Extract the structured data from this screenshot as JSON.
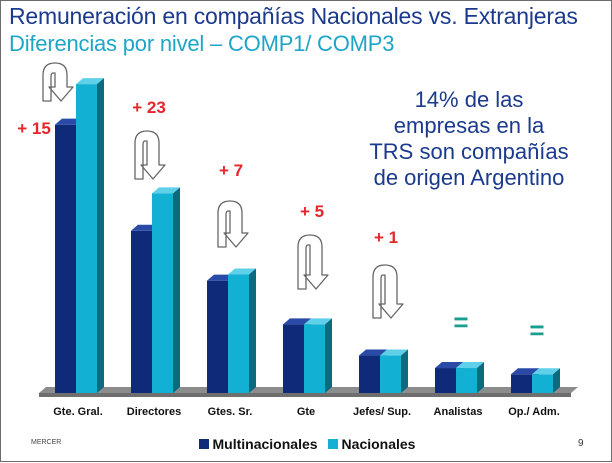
{
  "header": {
    "title_line1": "Remuneración en compañías Nacionales vs. Extranjeras",
    "title_line2": "Diferencias por nivel – COMP1/ COMP3"
  },
  "callout": {
    "text": "14% de las empresas en la TRS son compañías de origen Argentino"
  },
  "footer": {
    "brand": "MERCER",
    "page_number": "9"
  },
  "colors": {
    "multinacionales": "#0f2a78",
    "nacionales": "#12b0d2",
    "diff_label": "#e5262b",
    "equal_label": "#1a9e8e"
  },
  "chart_data": {
    "type": "bar",
    "title": "",
    "xlabel": "",
    "ylabel": "",
    "ylim": [
      0,
      100
    ],
    "grid": false,
    "legend_position": "bottom",
    "categories": [
      "Gte. Gral.",
      "Directores",
      "Gtes. Sr.",
      "Gte",
      "Jefes/ Sup.",
      "Analistas",
      "Op./ Adm."
    ],
    "series": [
      {
        "name": "Multinacionales",
        "values": [
          86,
          52,
          36,
          22,
          12,
          8,
          6
        ]
      },
      {
        "name": "Nacionales",
        "values": [
          99,
          64,
          38,
          22,
          12,
          8,
          6
        ]
      }
    ],
    "annotations": [
      "+ 15",
      "+ 23",
      "+ 7",
      "+ 5",
      "+ 1",
      "=",
      "="
    ]
  }
}
